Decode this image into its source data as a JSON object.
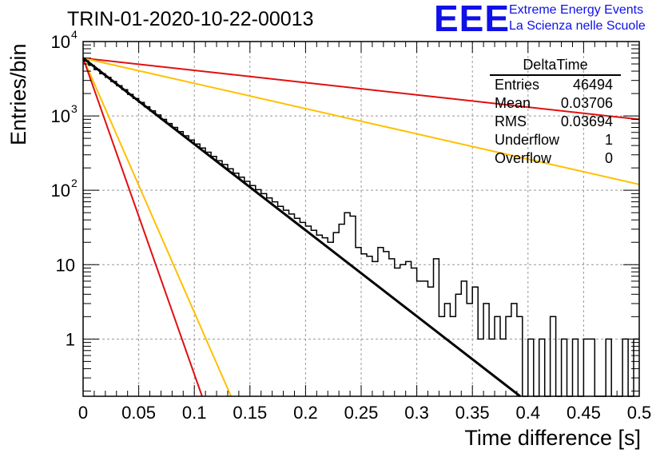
{
  "title": "TRIN-01-2020-10-22-00013",
  "logo": {
    "mark": "EEE",
    "line1": "Extreme Energy Events",
    "line2": "La Scienza nelle Scuole",
    "color": "#1010e8"
  },
  "stats": {
    "name": "DeltaTime",
    "rows": [
      {
        "label": "Entries",
        "value": "46494"
      },
      {
        "label": "Mean",
        "value": "0.03706"
      },
      {
        "label": "RMS",
        "value": "0.03694"
      },
      {
        "label": "Underflow",
        "value": "1"
      },
      {
        "label": "Overflow",
        "value": "0"
      }
    ]
  },
  "chart_data": {
    "type": "line",
    "xlabel": "Time difference [s]",
    "ylabel": "Entries/bin",
    "xlim": [
      0,
      0.5
    ],
    "ylim": [
      0.17,
      10000
    ],
    "yscale": "log",
    "grid": true,
    "x_ticks": [
      "0",
      "0.05",
      "0.1",
      "0.15",
      "0.2",
      "0.25",
      "0.3",
      "0.35",
      "0.4",
      "0.45",
      "0.5"
    ],
    "x_tick_values": [
      0,
      0.05,
      0.1,
      0.15,
      0.2,
      0.25,
      0.3,
      0.35,
      0.4,
      0.45,
      0.5
    ],
    "y_ticks": [
      {
        "value": 1,
        "label": "1"
      },
      {
        "value": 10,
        "label": "10"
      },
      {
        "value": 100,
        "label": "10",
        "exp": "2"
      },
      {
        "value": 1000,
        "label": "10",
        "exp": "3"
      },
      {
        "value": 10000,
        "label": "10",
        "exp": "4"
      }
    ],
    "histogram": {
      "bin_width": 0.005,
      "color": "#000000",
      "counts": [
        5500,
        4800,
        4200,
        3700,
        3300,
        2900,
        2550,
        2250,
        1950,
        1720,
        1520,
        1330,
        1170,
        1030,
        900,
        790,
        700,
        615,
        540,
        475,
        420,
        370,
        325,
        285,
        250,
        222,
        195,
        170,
        150,
        132,
        116,
        102,
        90,
        79,
        70,
        61,
        54,
        48,
        42,
        37,
        33,
        29,
        25,
        23,
        20,
        27,
        35,
        50,
        45,
        17,
        14,
        13,
        11,
        17,
        15,
        12,
        9,
        10,
        11,
        9,
        6,
        6,
        5,
        12,
        2,
        3,
        2,
        4,
        6,
        3,
        5,
        1,
        3,
        1,
        2,
        1,
        2,
        3,
        2,
        0,
        1,
        0,
        1,
        0,
        2,
        0,
        1,
        0,
        1,
        0,
        1,
        1,
        0,
        0,
        1,
        0,
        0,
        1,
        0,
        1
      ]
    },
    "series": [
      {
        "kind": "fit",
        "color": "#000000",
        "x": [
          0.0,
          0.393
        ],
        "y": [
          6000,
          0.17
        ]
      },
      {
        "kind": "ref",
        "color": "#e01010",
        "x": [
          0.0,
          0.5
        ],
        "y": [
          6000,
          900
        ]
      },
      {
        "kind": "ref",
        "color": "#ffc000",
        "x": [
          0.0,
          0.5
        ],
        "y": [
          6000,
          120
        ]
      },
      {
        "kind": "ref",
        "color": "#ffc000",
        "x": [
          0.0,
          0.133
        ],
        "y": [
          6000,
          0.17
        ]
      },
      {
        "kind": "ref",
        "color": "#e01010",
        "x": [
          0.0,
          0.107
        ],
        "y": [
          6000,
          0.17
        ]
      }
    ]
  }
}
